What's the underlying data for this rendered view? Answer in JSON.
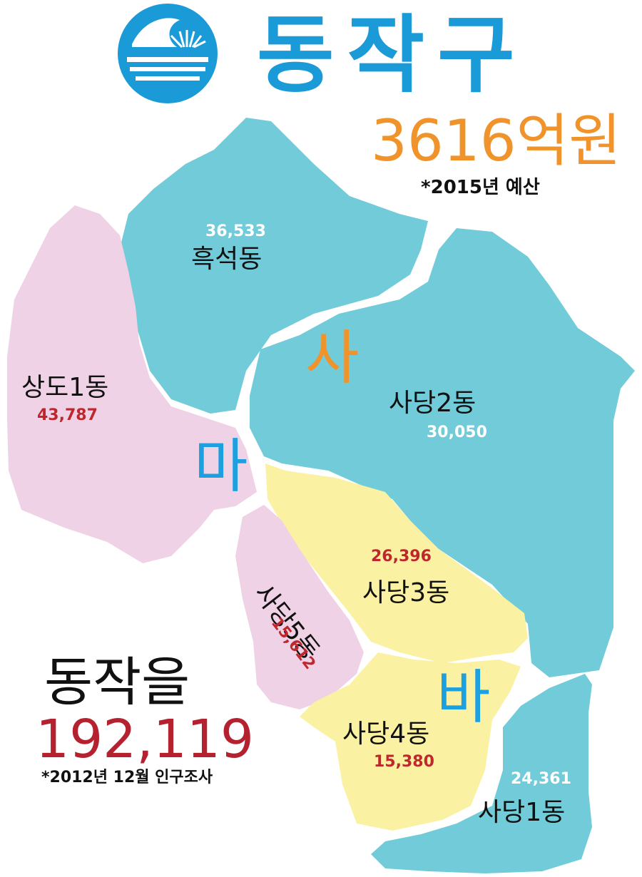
{
  "header": {
    "title": "동작구",
    "budget": "3616억원",
    "budget_note": "*2015년 예산"
  },
  "population": {
    "heading": "동작을",
    "total": "192,119",
    "note": "*2012년 12월 인구조사"
  },
  "zones": {
    "sa": "사",
    "ma": "마",
    "ba": "바"
  },
  "districts": {
    "heukseok": {
      "name": "흑석동",
      "population": "36,533"
    },
    "sangdo1": {
      "name": "상도1동",
      "population": "43,787"
    },
    "sadang2": {
      "name": "사당2동",
      "population": "30,050"
    },
    "sadang3": {
      "name": "사당3동",
      "population": "26,396"
    },
    "sadang5": {
      "name": "사당5동",
      "population": "15,612"
    },
    "sadang4": {
      "name": "사당4동",
      "population": "15,380"
    },
    "sadang1": {
      "name": "사당1동",
      "population": "24,361"
    }
  },
  "colors": {
    "zone_sa": "#72cbd8",
    "zone_ma": "#efd2e5",
    "zone_ba": "#fbf1a2",
    "accent_blue": "#1a9ad7",
    "accent_orange": "#f0932a",
    "accent_red": "#b5222f"
  },
  "icons": [
    "dongjak-emblem"
  ]
}
